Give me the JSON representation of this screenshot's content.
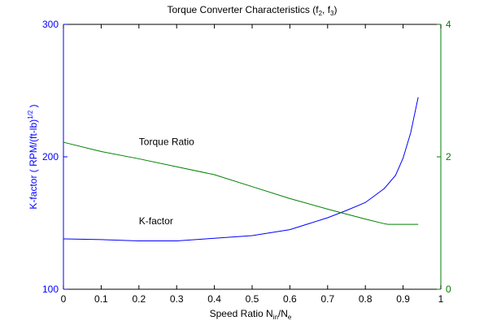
{
  "chart_data": {
    "type": "line",
    "title": "Torque Converter Characteristics (f_2, f_3)",
    "title_parts": {
      "main": "Torque Converter Characteristics (f",
      "sub1": "2",
      "mid": ", f",
      "sub2": "3",
      "end": ")"
    },
    "xlabel": "Speed Ratio N_in/N_e",
    "xlabel_parts": {
      "main": "Speed Ratio N",
      "sub1": "in",
      "mid": "/N",
      "sub2": "e"
    },
    "ylabel_left": "K-factor ( RPM/(ft-lb)^1/2 )",
    "ylabel_left_parts": {
      "main": "K-factor ( RPM/(ft-lb)",
      "sup": "1/2",
      "end": " )"
    },
    "ylabel_right": "",
    "xlim": [
      0,
      1
    ],
    "ylim_left": [
      100,
      300
    ],
    "ylim_right": [
      0,
      4
    ],
    "x_ticks": [
      "0",
      "0.1",
      "0.2",
      "0.3",
      "0.4",
      "0.5",
      "0.6",
      "0.7",
      "0.8",
      "0.9",
      "1"
    ],
    "y_ticks_left": [
      "100",
      "200",
      "300"
    ],
    "y_ticks_right": [
      "0",
      "2",
      "4"
    ],
    "grid": false,
    "colors": {
      "left_axis": "#0000ff",
      "right_axis": "#008000",
      "k_factor": "#0000ff",
      "torque_ratio": "#008000"
    },
    "annotations": [
      {
        "text": "Torque Ratio",
        "x": 0.2,
        "y_left": 209
      },
      {
        "text": "K-factor",
        "x": 0.2,
        "y_left": 149
      }
    ],
    "series": [
      {
        "key": "k_factor",
        "axis": "left",
        "x": [
          0,
          0.1,
          0.2,
          0.3,
          0.4,
          0.5,
          0.6,
          0.7,
          0.75,
          0.8,
          0.85,
          0.88,
          0.9,
          0.92,
          0.94
        ],
        "values": [
          138,
          137.5,
          136.5,
          136.5,
          138.5,
          140.5,
          145,
          154,
          159.5,
          165.5,
          176,
          186,
          199,
          218,
          245
        ]
      },
      {
        "key": "torque_ratio",
        "axis": "right",
        "x": [
          0,
          0.1,
          0.2,
          0.3,
          0.4,
          0.5,
          0.6,
          0.7,
          0.8,
          0.85,
          0.86,
          0.9,
          0.94
        ],
        "values": [
          2.22,
          2.08,
          1.97,
          1.85,
          1.73,
          1.55,
          1.37,
          1.21,
          1.06,
          0.99,
          0.98,
          0.98,
          0.98
        ]
      }
    ]
  }
}
